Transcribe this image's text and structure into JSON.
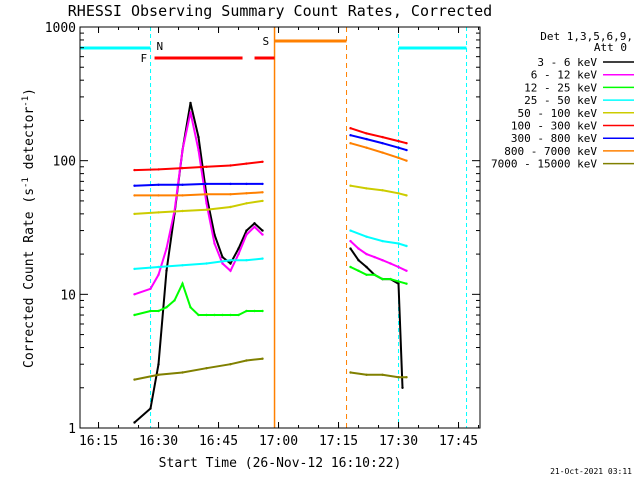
{
  "chart_data": {
    "type": "line",
    "title": "RHESSI Observing Summary Count Rates, Corrected",
    "xlabel": "Start Time (26-Nov-12 16:10:22)",
    "ylabel": "Corrected Count Rate (s⁻¹ detector⁻¹)",
    "ylabel_main": "Corrected Count Rate (s",
    "ylabel_sup1": "-1",
    "ylabel_mid": " detector",
    "ylabel_sup2": "-1",
    "ylabel_end": ")",
    "yscale": "log",
    "ylim": [
      1,
      1000
    ],
    "xlim": [
      "16:10:22",
      "17:50:22"
    ],
    "x_ticks": [
      "16:15",
      "16:30",
      "16:45",
      "17:00",
      "17:15",
      "17:30",
      "17:45"
    ],
    "y_ticks": [
      "1",
      "10",
      "100",
      "1000"
    ],
    "legend_header": [
      "Det 1,3,5,6,9,",
      "Att 0"
    ],
    "legend_position": "right",
    "footer": "21-Oct-2021 03:11",
    "series": [
      {
        "name": "3 - 6 keV",
        "color": "#000000",
        "segments": [
          {
            "x": [
              "16:24",
              "16:28",
              "16:30",
              "16:32",
              "16:34",
              "16:36",
              "16:38",
              "16:40",
              "16:42",
              "16:44",
              "16:46",
              "16:48",
              "16:50",
              "16:52",
              "16:54",
              "16:56"
            ],
            "y": [
              1.1,
              1.4,
              3,
              15,
              40,
              120,
              270,
              150,
              55,
              28,
              19,
              17,
              22,
              30,
              34,
              30
            ]
          },
          {
            "x": [
              "17:18",
              "17:20",
              "17:22",
              "17:24",
              "17:26",
              "17:28",
              "17:30",
              "17:31"
            ],
            "y": [
              22,
              18,
              16,
              14,
              13,
              13,
              12,
              2
            ]
          }
        ]
      },
      {
        "name": "6 - 12 keV",
        "color": "#ff00ff",
        "segments": [
          {
            "x": [
              "16:24",
              "16:28",
              "16:30",
              "16:32",
              "16:34",
              "16:36",
              "16:38",
              "16:40",
              "16:42",
              "16:44",
              "16:46",
              "16:48",
              "16:50",
              "16:52",
              "16:54",
              "16:56"
            ],
            "y": [
              10,
              11,
              14,
              22,
              42,
              120,
              230,
              120,
              48,
              24,
              17,
              15,
              20,
              28,
              32,
              28
            ]
          },
          {
            "x": [
              "17:18",
              "17:20",
              "17:22",
              "17:24",
              "17:26",
              "17:28",
              "17:30",
              "17:32"
            ],
            "y": [
              25,
              22,
              20,
              19,
              18,
              17,
              16,
              15
            ]
          }
        ]
      },
      {
        "name": "12 - 25 keV",
        "color": "#00ff00",
        "segments": [
          {
            "x": [
              "16:24",
              "16:28",
              "16:30",
              "16:32",
              "16:34",
              "16:36",
              "16:38",
              "16:40",
              "16:42",
              "16:44",
              "16:46",
              "16:48",
              "16:50",
              "16:52",
              "16:54",
              "16:56"
            ],
            "y": [
              7,
              7.5,
              7.5,
              8,
              9,
              12,
              8,
              7,
              7,
              7,
              7,
              7,
              7,
              7.5,
              7.5,
              7.5
            ]
          },
          {
            "x": [
              "17:18",
              "17:20",
              "17:22",
              "17:24",
              "17:26",
              "17:28",
              "17:30",
              "17:32"
            ],
            "y": [
              16,
              15,
              14,
              14,
              13,
              13,
              12.5,
              12
            ]
          }
        ]
      },
      {
        "name": "25 - 50 keV",
        "color": "#00ffff",
        "segments": [
          {
            "x": [
              "16:24",
              "16:30",
              "16:36",
              "16:42",
              "16:48",
              "16:52",
              "16:56"
            ],
            "y": [
              15.5,
              16,
              16.5,
              17,
              18,
              18,
              18.5
            ]
          },
          {
            "x": [
              "17:18",
              "17:22",
              "17:26",
              "17:30",
              "17:32"
            ],
            "y": [
              30,
              27,
              25,
              24,
              23
            ]
          }
        ]
      },
      {
        "name": "50 - 100 keV",
        "color": "#cccc00",
        "segments": [
          {
            "x": [
              "16:24",
              "16:30",
              "16:36",
              "16:42",
              "16:48",
              "16:52",
              "16:56"
            ],
            "y": [
              40,
              41,
              42,
              43,
              45,
              48,
              50
            ]
          },
          {
            "x": [
              "17:18",
              "17:22",
              "17:26",
              "17:30",
              "17:32"
            ],
            "y": [
              65,
              62,
              60,
              57,
              55
            ]
          }
        ]
      },
      {
        "name": "100 - 300 keV",
        "color": "#ff0000",
        "segments": [
          {
            "x": [
              "16:24",
              "16:30",
              "16:36",
              "16:42",
              "16:48",
              "16:52",
              "16:56"
            ],
            "y": [
              85,
              86,
              88,
              90,
              92,
              95,
              98
            ]
          },
          {
            "x": [
              "17:18",
              "17:22",
              "17:26",
              "17:30",
              "17:32"
            ],
            "y": [
              175,
              160,
              150,
              140,
              135
            ]
          }
        ]
      },
      {
        "name": "300 - 800 keV",
        "color": "#0000ff",
        "segments": [
          {
            "x": [
              "16:24",
              "16:30",
              "16:36",
              "16:42",
              "16:48",
              "16:52",
              "16:56"
            ],
            "y": [
              65,
              66,
              66,
              67,
              67,
              67,
              67
            ]
          },
          {
            "x": [
              "17:18",
              "17:22",
              "17:26",
              "17:30",
              "17:32"
            ],
            "y": [
              155,
              145,
              135,
              125,
              120
            ]
          }
        ]
      },
      {
        "name": "800 - 7000 keV",
        "color": "#ff8000",
        "segments": [
          {
            "x": [
              "16:24",
              "16:30",
              "16:36",
              "16:42",
              "16:48",
              "16:52",
              "16:56"
            ],
            "y": [
              55,
              55,
              55,
              56,
              56,
              57,
              58
            ]
          },
          {
            "x": [
              "17:18",
              "17:22",
              "17:26",
              "17:30",
              "17:32"
            ],
            "y": [
              135,
              125,
              115,
              105,
              100
            ]
          }
        ]
      },
      {
        "name": "7000 - 15000 keV",
        "color": "#808000",
        "segments": [
          {
            "x": [
              "16:24",
              "16:30",
              "16:36",
              "16:42",
              "16:48",
              "16:52",
              "16:56"
            ],
            "y": [
              2.3,
              2.5,
              2.6,
              2.8,
              3,
              3.2,
              3.3
            ]
          },
          {
            "x": [
              "17:18",
              "17:22",
              "17:26",
              "17:30",
              "17:32"
            ],
            "y": [
              2.6,
              2.5,
              2.5,
              2.4,
              2.4
            ]
          }
        ]
      }
    ],
    "annotations": {
      "night_markers": {
        "label": "N",
        "color": "#00ffff",
        "bands": [
          [
            "16:10:22",
            "16:28"
          ],
          [
            "17:30",
            "17:47"
          ]
        ]
      },
      "flare_marker": {
        "label": "F",
        "color": "#ff0000",
        "bands": [
          [
            "16:29",
            "16:51"
          ],
          [
            "16:54",
            "16:59"
          ]
        ]
      },
      "saa_marker": {
        "label": "S",
        "color": "#ff8000",
        "bands": [
          [
            "16:59",
            "17:17"
          ]
        ]
      }
    }
  }
}
